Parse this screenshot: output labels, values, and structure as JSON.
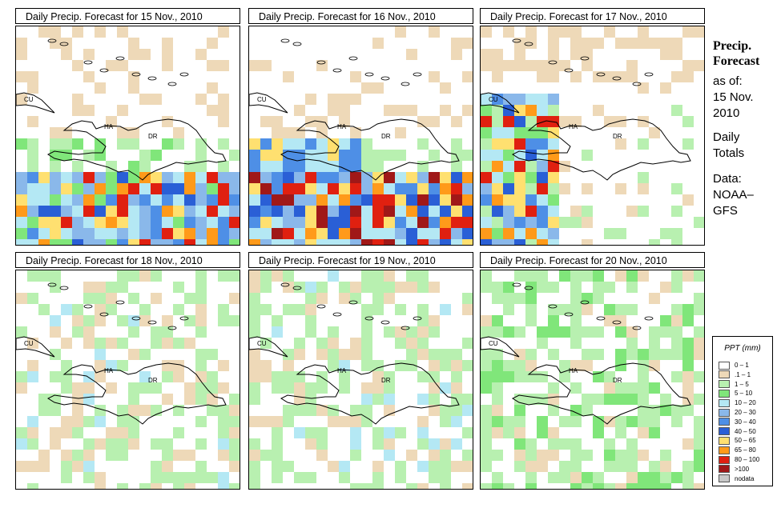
{
  "panels": [
    {
      "title": "Daily Precip. Forecast for  15 Nov., 2010",
      "seed": 1,
      "mode": "wet"
    },
    {
      "title": "Daily Precip. Forecast for  16 Nov., 2010",
      "seed": 2,
      "mode": "verywet"
    },
    {
      "title": "Daily Precip. Forecast for  17 Nov., 2010",
      "seed": 3,
      "mode": "west"
    },
    {
      "title": "Daily Precip. Forecast for  18 Nov., 2010",
      "seed": 4,
      "mode": "light"
    },
    {
      "title": "Daily Precip. Forecast for  19 Nov., 2010",
      "seed": 5,
      "mode": "light"
    },
    {
      "title": "Daily Precip. Forecast for  20 Nov., 2010",
      "seed": 6,
      "mode": "green"
    }
  ],
  "map_labels": {
    "cuba": "CU",
    "haiti": "HA",
    "dominican_republic": "DR"
  },
  "sidebar": {
    "heading_line1": "Precip.",
    "heading_line2": "Forecast",
    "asof_line1": "as of:",
    "asof_line2": "15 Nov.",
    "asof_line3": "2010",
    "totals_line1": "Daily",
    "totals_line2": "Totals",
    "data_line1": "Data:",
    "data_line2": "NOAA–",
    "data_line3": "GFS"
  },
  "legend": {
    "title": "PPT (mm)",
    "entries": [
      {
        "label": "0 – 1",
        "color": "#ffffff"
      },
      {
        "label": ".1 – 1",
        "color": "#eed9b8"
      },
      {
        "label": "1 – 5",
        "color": "#b8f0b0"
      },
      {
        "label": "5 – 10",
        "color": "#80e67a"
      },
      {
        "label": "10 – 20",
        "color": "#b4e8f4"
      },
      {
        "label": "20 – 30",
        "color": "#8ab8ea"
      },
      {
        "label": "30 – 40",
        "color": "#4e8fe6"
      },
      {
        "label": "40 – 50",
        "color": "#2a5fd6"
      },
      {
        "label": "50 – 65",
        "color": "#ffe070"
      },
      {
        "label": "65 – 80",
        "color": "#ff9a1a"
      },
      {
        "label": "80 – 100",
        "color": "#e02010"
      },
      {
        "label": ">100",
        "color": "#a01818"
      },
      {
        "label": "nodata",
        "color": "#c8c8c8"
      }
    ]
  }
}
